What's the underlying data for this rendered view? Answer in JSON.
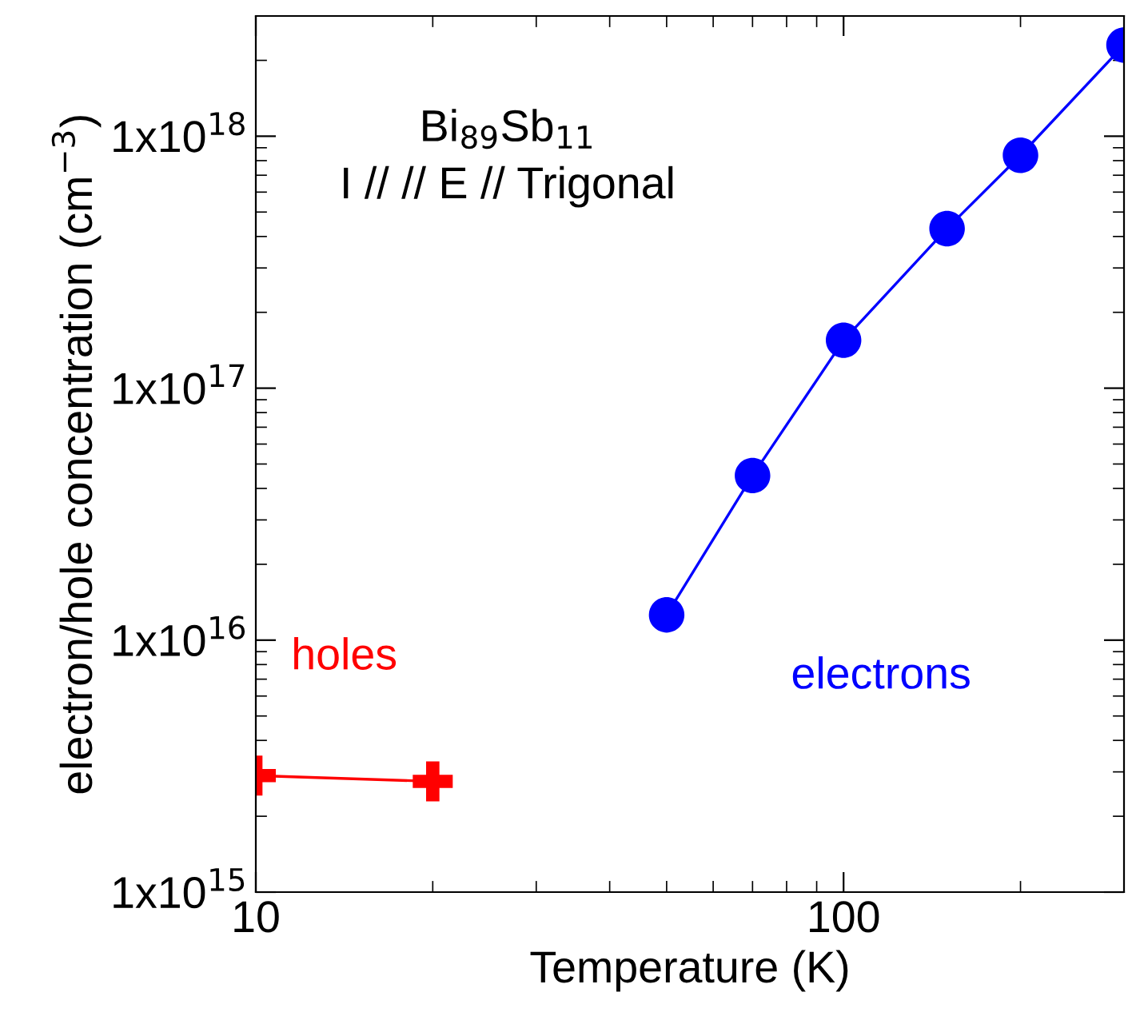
{
  "chart_data": {
    "type": "line",
    "xlabel": "Temperature (K)",
    "ylabel": "electron/hole concentration (cm$^{−3}$)",
    "annotations": [
      "Bi$_{89}$Sb$_{11}$",
      "I // // E // Trigonal"
    ],
    "log": "xy",
    "grid": false,
    "legend": false,
    "xlim": [
      10,
      300
    ],
    "xticks": [
      10,
      100
    ],
    "ylim": [
      1000000000000000.0,
      3e+18
    ],
    "yticks": [
      {
        "value": 1000000000000000.0,
        "label": "1x10$^{15}$"
      },
      {
        "value": 1e+16,
        "label": "1x10$^{16}$"
      },
      {
        "value": 1e+17,
        "label": "1x10$^{17}$"
      },
      {
        "value": 1e+18,
        "label": "1x10$^{18}$"
      }
    ],
    "series": [
      {
        "name": "holes",
        "color": "#ff0000",
        "marker": "cross",
        "x": [
          10,
          20
        ],
        "values": [
          2900000000000000.0,
          2750000000000000.0
        ]
      },
      {
        "name": "electrons",
        "color": "#0000ff",
        "marker": "circle",
        "x": [
          50,
          70,
          100,
          150,
          200,
          300
        ],
        "values": [
          1.26e+16,
          4.5e+16,
          1.55e+17,
          4.3e+17,
          8.4e+17,
          2.3e+18
        ]
      }
    ]
  }
}
